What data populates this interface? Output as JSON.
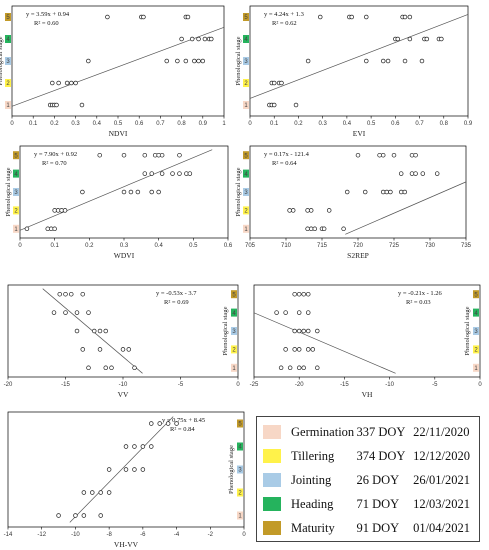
{
  "stage_colors": [
    "#f7d7c6",
    "#fff24a",
    "#a9cbe6",
    "#25b35d",
    "#c29a28"
  ],
  "legend": [
    {
      "stage": "Germination",
      "doy": "337 DOY",
      "date": "22/11/2020",
      "color": "#f7d7c6"
    },
    {
      "stage": "Tillering",
      "doy": "374 DOY",
      "date": "12/12/2020",
      "color": "#fff24a"
    },
    {
      "stage": "Jointing",
      "doy": "26 DOY",
      "date": "26/01/2021",
      "color": "#a9cbe6"
    },
    {
      "stage": "Heading",
      "doy": "71 DOY",
      "date": "12/03/2021",
      "color": "#25b35d"
    },
    {
      "stage": "Maturity",
      "doy": "91 DOY",
      "date": "01/04/2021",
      "color": "#c29a28"
    }
  ],
  "chart_data": [
    {
      "type": "scatter",
      "id": "ndvi",
      "xlabel": "NDVI",
      "ylabel": "Phenological stage",
      "equation": "y = 3.59x + 0.94",
      "r2": "R² = 0.60",
      "xlim": [
        0,
        1
      ],
      "xticks": [
        0,
        0.1,
        0.2,
        0.3,
        0.4,
        0.5,
        0.6,
        0.7,
        0.8,
        0.9,
        1
      ],
      "ylim": [
        0.5,
        5.5
      ],
      "trend": {
        "slope": 3.59,
        "intercept": 0.94
      },
      "ylabel_side": "left",
      "points": [
        [
          0.18,
          1
        ],
        [
          0.19,
          1
        ],
        [
          0.2,
          1
        ],
        [
          0.21,
          1
        ],
        [
          0.33,
          1
        ],
        [
          0.19,
          2
        ],
        [
          0.22,
          2
        ],
        [
          0.26,
          2
        ],
        [
          0.28,
          2
        ],
        [
          0.3,
          2
        ],
        [
          0.36,
          3
        ],
        [
          0.73,
          3
        ],
        [
          0.78,
          3
        ],
        [
          0.82,
          3
        ],
        [
          0.86,
          3
        ],
        [
          0.88,
          3
        ],
        [
          0.9,
          3
        ],
        [
          0.8,
          4
        ],
        [
          0.85,
          4
        ],
        [
          0.88,
          4
        ],
        [
          0.91,
          4
        ],
        [
          0.93,
          4
        ],
        [
          0.94,
          4
        ],
        [
          0.45,
          5
        ],
        [
          0.61,
          5
        ],
        [
          0.62,
          5
        ],
        [
          0.82,
          5
        ],
        [
          0.83,
          5
        ]
      ]
    },
    {
      "type": "scatter",
      "id": "evi",
      "xlabel": "EVI",
      "ylabel": "Phenological stage",
      "equation": "y = 4.24x + 1.3",
      "r2": "R² = 0.62",
      "xlim": [
        0,
        0.9
      ],
      "xticks": [
        0,
        0.1,
        0.2,
        0.3,
        0.4,
        0.5,
        0.6,
        0.7,
        0.8,
        0.9
      ],
      "ylim": [
        0.5,
        5.5
      ],
      "trend": {
        "slope": 4.24,
        "intercept": 1.3
      },
      "ylabel_side": "left",
      "points": [
        [
          0.08,
          1
        ],
        [
          0.09,
          1
        ],
        [
          0.1,
          1
        ],
        [
          0.19,
          1
        ],
        [
          0.09,
          2
        ],
        [
          0.1,
          2
        ],
        [
          0.12,
          2
        ],
        [
          0.13,
          2
        ],
        [
          0.24,
          3
        ],
        [
          0.48,
          3
        ],
        [
          0.55,
          3
        ],
        [
          0.57,
          3
        ],
        [
          0.64,
          3
        ],
        [
          0.71,
          3
        ],
        [
          0.6,
          4
        ],
        [
          0.61,
          4
        ],
        [
          0.66,
          4
        ],
        [
          0.72,
          4
        ],
        [
          0.73,
          4
        ],
        [
          0.78,
          4
        ],
        [
          0.79,
          4
        ],
        [
          0.29,
          5
        ],
        [
          0.41,
          5
        ],
        [
          0.42,
          5
        ],
        [
          0.48,
          5
        ],
        [
          0.63,
          5
        ],
        [
          0.64,
          5
        ],
        [
          0.66,
          5
        ]
      ]
    },
    {
      "type": "scatter",
      "id": "wdvi",
      "xlabel": "WDVI",
      "ylabel": "Phenological stage",
      "equation": "y = 7.90x + 0.92",
      "r2": "R² = 0.70",
      "xlim": [
        0,
        0.6
      ],
      "xticks": [
        0,
        0.1,
        0.2,
        0.3,
        0.4,
        0.5,
        0.6
      ],
      "ylim": [
        0.5,
        5.5
      ],
      "trend": {
        "slope": 7.9,
        "intercept": 0.92
      },
      "ylabel_side": "left",
      "points": [
        [
          0.02,
          1
        ],
        [
          0.08,
          1
        ],
        [
          0.09,
          1
        ],
        [
          0.1,
          1
        ],
        [
          0.1,
          2
        ],
        [
          0.11,
          2
        ],
        [
          0.12,
          2
        ],
        [
          0.13,
          2
        ],
        [
          0.18,
          3
        ],
        [
          0.3,
          3
        ],
        [
          0.32,
          3
        ],
        [
          0.34,
          3
        ],
        [
          0.38,
          3
        ],
        [
          0.4,
          3
        ],
        [
          0.36,
          4
        ],
        [
          0.38,
          4
        ],
        [
          0.41,
          4
        ],
        [
          0.44,
          4
        ],
        [
          0.46,
          4
        ],
        [
          0.48,
          4
        ],
        [
          0.49,
          4
        ],
        [
          0.23,
          5
        ],
        [
          0.3,
          5
        ],
        [
          0.36,
          5
        ],
        [
          0.39,
          5
        ],
        [
          0.4,
          5
        ],
        [
          0.41,
          5
        ],
        [
          0.46,
          5
        ]
      ]
    },
    {
      "type": "scatter",
      "id": "s2rep",
      "xlabel": "S2REP",
      "ylabel": "Phenological stage",
      "equation": "y = 0.17x - 121.4",
      "r2": "R² = 0.64",
      "xlim": [
        705,
        735
      ],
      "xticks": [
        705,
        710,
        715,
        720,
        725,
        730,
        735
      ],
      "ylim": [
        0.5,
        5.5
      ],
      "trend": {
        "slope": 0.17,
        "intercept": -121.4
      },
      "ylabel_side": "left",
      "points": [
        [
          713,
          1
        ],
        [
          713.5,
          1
        ],
        [
          714,
          1
        ],
        [
          715,
          1
        ],
        [
          715.3,
          1
        ],
        [
          718,
          1
        ],
        [
          710.5,
          2
        ],
        [
          711,
          2
        ],
        [
          713,
          2
        ],
        [
          713.5,
          2
        ],
        [
          716,
          2
        ],
        [
          718.5,
          3
        ],
        [
          721,
          3
        ],
        [
          723.5,
          3
        ],
        [
          724,
          3
        ],
        [
          724.5,
          3
        ],
        [
          726,
          3
        ],
        [
          726.5,
          3
        ],
        [
          726,
          4
        ],
        [
          727.5,
          4
        ],
        [
          728,
          4
        ],
        [
          729,
          4
        ],
        [
          731,
          4
        ],
        [
          720,
          5
        ],
        [
          723,
          5
        ],
        [
          723.5,
          5
        ],
        [
          725,
          5
        ],
        [
          727.5,
          5
        ],
        [
          728,
          5
        ]
      ]
    },
    {
      "type": "scatter",
      "id": "vv",
      "xlabel": "VV",
      "ylabel": "Phenological stage",
      "equation": "y = -0.53x - 3.7",
      "r2": "R² = 0.69",
      "xlim": [
        -20,
        0
      ],
      "xticks": [
        -20,
        -15,
        -10,
        -5,
        0
      ],
      "ylim": [
        0.5,
        5.5
      ],
      "trend": {
        "slope": -0.53,
        "intercept": -3.7
      },
      "ylabel_side": "right",
      "points": [
        [
          -13,
          1
        ],
        [
          -11.5,
          1
        ],
        [
          -11,
          1
        ],
        [
          -9,
          1
        ],
        [
          -13.5,
          2
        ],
        [
          -12,
          2
        ],
        [
          -10,
          2
        ],
        [
          -9.5,
          2
        ],
        [
          -14,
          3
        ],
        [
          -12.5,
          3
        ],
        [
          -12,
          3
        ],
        [
          -11.5,
          3
        ],
        [
          -16,
          4
        ],
        [
          -15,
          4
        ],
        [
          -14,
          4
        ],
        [
          -13,
          4
        ],
        [
          -15.5,
          5
        ],
        [
          -15,
          5
        ],
        [
          -14.5,
          5
        ],
        [
          -13.5,
          5
        ]
      ]
    },
    {
      "type": "scatter",
      "id": "vh",
      "xlabel": "VH",
      "ylabel": "Phenological stage",
      "equation": "y = -0.21x - 1.26",
      "r2": "R² = 0.03",
      "xlim": [
        -25,
        0
      ],
      "xticks": [
        -25,
        -20,
        -15,
        -10,
        -5,
        0
      ],
      "ylim": [
        0.5,
        5.5
      ],
      "trend": {
        "slope": -0.21,
        "intercept": -1.26
      },
      "ylabel_side": "right",
      "points": [
        [
          -22,
          1
        ],
        [
          -21,
          1
        ],
        [
          -20,
          1
        ],
        [
          -19.5,
          1
        ],
        [
          -18,
          1
        ],
        [
          -21.5,
          2
        ],
        [
          -20.5,
          2
        ],
        [
          -20,
          2
        ],
        [
          -19,
          2
        ],
        [
          -18.5,
          2
        ],
        [
          -20.5,
          3
        ],
        [
          -20,
          3
        ],
        [
          -19.5,
          3
        ],
        [
          -19,
          3
        ],
        [
          -18,
          3
        ],
        [
          -22.5,
          4
        ],
        [
          -21.5,
          4
        ],
        [
          -20,
          4
        ],
        [
          -19,
          4
        ],
        [
          -20.5,
          5
        ],
        [
          -20,
          5
        ],
        [
          -19.5,
          5
        ],
        [
          -19,
          5
        ]
      ]
    },
    {
      "type": "scatter",
      "id": "vhvv",
      "xlabel": "VH-VV",
      "ylabel": "Phenological stage",
      "equation": "y = 0.75x + 8.45",
      "r2": "R² = 0.84",
      "xlim": [
        -14,
        0
      ],
      "xticks": [
        -14,
        -12,
        -10,
        -8,
        -6,
        -4,
        -2,
        0
      ],
      "ylim": [
        0.5,
        5.5
      ],
      "trend": {
        "slope": 0.75,
        "intercept": 8.45
      },
      "ylabel_side": "right",
      "points": [
        [
          -11,
          1
        ],
        [
          -10,
          1
        ],
        [
          -9.5,
          1
        ],
        [
          -8.5,
          1
        ],
        [
          -9.5,
          2
        ],
        [
          -9,
          2
        ],
        [
          -8.5,
          2
        ],
        [
          -8,
          2
        ],
        [
          -8,
          3
        ],
        [
          -7,
          3
        ],
        [
          -6.5,
          3
        ],
        [
          -6,
          3
        ],
        [
          -7,
          4
        ],
        [
          -6.5,
          4
        ],
        [
          -6,
          4
        ],
        [
          -5.5,
          4
        ],
        [
          -5.5,
          5
        ],
        [
          -5,
          5
        ],
        [
          -4.5,
          5
        ],
        [
          -4,
          5
        ]
      ]
    }
  ]
}
